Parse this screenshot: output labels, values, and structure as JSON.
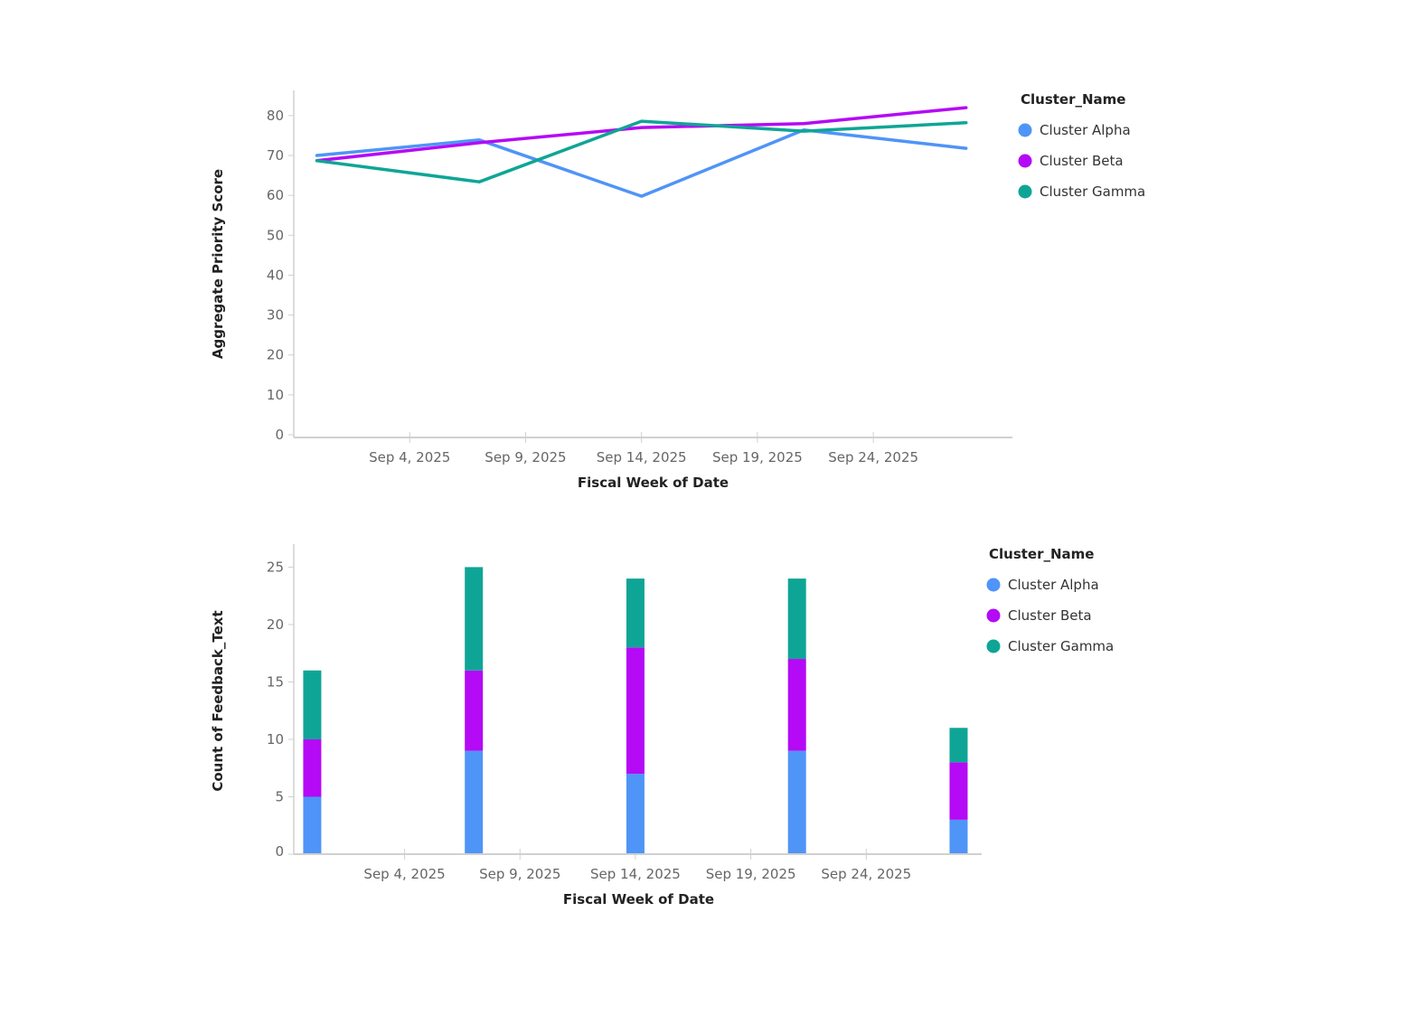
{
  "chart_data": [
    {
      "type": "line",
      "title": "",
      "xlabel": "Fiscal Week of Date",
      "ylabel": "Aggregate Priority Score",
      "ylim": [
        0,
        87
      ],
      "yticks": [
        0,
        10,
        20,
        30,
        40,
        50,
        60,
        70,
        80
      ],
      "x_tick_labels": [
        "Sep 4, 2025",
        "Sep 9, 2025",
        "Sep 14, 2025",
        "Sep 19, 2025",
        "Sep 24, 2025"
      ],
      "x_tick_days": [
        0,
        5,
        10,
        15,
        20
      ],
      "x_days_note": "x values are estimated day offsets relative to the 'Sep 4, 2025' tick, read from tick spacing",
      "x_days": [
        -4,
        3,
        10,
        17,
        24
      ],
      "xlim_days": [
        -5,
        26
      ],
      "grid": false,
      "legend": {
        "title": "Cluster_Name",
        "position": "right"
      },
      "series": [
        {
          "name": "Cluster Alpha",
          "color": "#4F94F7",
          "values": [
            70.0,
            73.9,
            59.8,
            76.4,
            71.8
          ]
        },
        {
          "name": "Cluster Beta",
          "color": "#B40AF5",
          "values": [
            68.7,
            73.2,
            77.0,
            78.0,
            82.0
          ]
        },
        {
          "name": "Cluster Gamma",
          "color": "#0FA596",
          "values": [
            68.7,
            63.4,
            78.6,
            76.1,
            78.2
          ]
        }
      ]
    },
    {
      "type": "bar",
      "stacked": true,
      "title": "",
      "xlabel": "Fiscal Week of Date",
      "ylabel": "Count of Feedback_Text",
      "ylim": [
        0,
        27
      ],
      "yticks": [
        0,
        5,
        10,
        15,
        20,
        25
      ],
      "x_tick_labels": [
        "Sep 4, 2025",
        "Sep 9, 2025",
        "Sep 14, 2025",
        "Sep 19, 2025",
        "Sep 24, 2025"
      ],
      "x_tick_days": [
        0,
        5,
        10,
        15,
        20
      ],
      "x_days_note": "x values are estimated day offsets relative to the 'Sep 4, 2025' tick, read from tick spacing",
      "x_days": [
        -4,
        3,
        10,
        17,
        24
      ],
      "xlim_days": [
        -4.8,
        25
      ],
      "grid": false,
      "legend": {
        "title": "Cluster_Name",
        "position": "right"
      },
      "series": [
        {
          "name": "Cluster Alpha",
          "color": "#4F94F7",
          "values": [
            5,
            9,
            7,
            9,
            3
          ]
        },
        {
          "name": "Cluster Beta",
          "color": "#B40AF5",
          "values": [
            5,
            7,
            11,
            8,
            5
          ]
        },
        {
          "name": "Cluster Gamma",
          "color": "#0FA596",
          "values": [
            6,
            9,
            6,
            7,
            3
          ]
        }
      ],
      "totals": [
        16,
        25,
        24,
        24,
        11
      ]
    }
  ]
}
